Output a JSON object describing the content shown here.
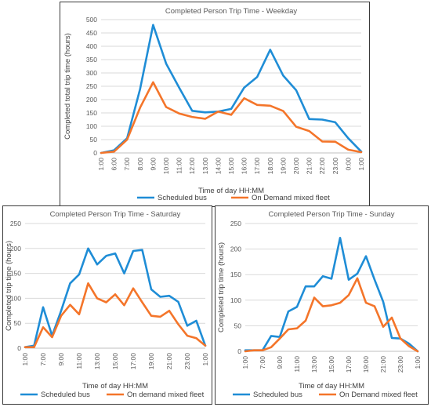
{
  "colors": {
    "scheduled": "#1f8dd6",
    "on_demand": "#f4752a"
  },
  "chart_data": [
    {
      "type": "line",
      "title": "Completed Person Trip Time - Weekday",
      "xlabel": "Time of day HH:MM",
      "ylabel": "Completed total trip time (hours)",
      "ylim": [
        0,
        500
      ],
      "yticks": [
        0,
        50,
        100,
        150,
        200,
        250,
        300,
        350,
        400,
        450,
        500
      ],
      "grid": true,
      "legend": "bottom",
      "categories": [
        "1:00",
        "6:00",
        "7:00",
        "8:00",
        "9:00",
        "10:00",
        "11:00",
        "12:00",
        "13:00",
        "14:00",
        "15:00",
        "16:00",
        "17:00",
        "18:00",
        "19:00",
        "20:00",
        "21:00",
        "22:00",
        "23:00",
        "0:00",
        "1:00"
      ],
      "series": [
        {
          "name": "Scheduled bus",
          "color": "#1f8dd6",
          "values": [
            0,
            10,
            55,
            240,
            480,
            335,
            245,
            158,
            152,
            155,
            165,
            245,
            285,
            387,
            290,
            235,
            127,
            125,
            115,
            55,
            5
          ]
        },
        {
          "name": "On Demand mixed fleet",
          "color": "#f4752a",
          "values": [
            0,
            5,
            50,
            170,
            265,
            172,
            148,
            135,
            128,
            155,
            143,
            205,
            180,
            177,
            157,
            98,
            82,
            43,
            42,
            12,
            3
          ]
        }
      ]
    },
    {
      "type": "line",
      "title": "Completed Person Trip Time - Saturday",
      "xlabel": "Time of day HH:MM",
      "ylabel": "Completed trip time (hours)",
      "ylim": [
        0,
        250
      ],
      "yticks": [
        0,
        50,
        100,
        150,
        200,
        250
      ],
      "grid": true,
      "legend": "bottom",
      "categories": [
        "1:00",
        "6:00",
        "7:00",
        "8:00",
        "9:00",
        "10:00",
        "11:00",
        "12:00",
        "13:00",
        "14:00",
        "15:00",
        "16:00",
        "17:00",
        "18:00",
        "19:00",
        "20:00",
        "21:00",
        "22:00",
        "23:00",
        "0:00",
        "1:00"
      ],
      "tick_labels": [
        "1:00",
        "",
        "7:00",
        "",
        "9:00",
        "",
        "11:00",
        "",
        "13:00",
        "",
        "15:00",
        "",
        "17:00",
        "",
        "19:00",
        "",
        "21:00",
        "",
        "23:00",
        "",
        "1:00"
      ],
      "series": [
        {
          "name": "Scheduled bus",
          "color": "#1f8dd6",
          "values": [
            2,
            5,
            82,
            25,
            75,
            130,
            148,
            200,
            168,
            185,
            190,
            150,
            195,
            197,
            118,
            103,
            105,
            93,
            45,
            55,
            5
          ]
        },
        {
          "name": "On demand mixed fleet",
          "color": "#f4752a",
          "values": [
            2,
            2,
            42,
            22,
            65,
            87,
            68,
            130,
            100,
            92,
            108,
            86,
            120,
            92,
            65,
            63,
            75,
            48,
            25,
            20,
            5
          ]
        }
      ]
    },
    {
      "type": "line",
      "title": "Completed Person Trip Time - Sunday",
      "xlabel": "Time of day HH:MM",
      "ylabel": "Completed trip time (hours)",
      "ylim": [
        0,
        250
      ],
      "yticks": [
        0,
        50,
        100,
        150,
        200,
        250
      ],
      "grid": true,
      "legend": "bottom",
      "categories": [
        "1:00",
        "6:00",
        "7:00",
        "8:00",
        "9:00",
        "10:00",
        "11:00",
        "12:00",
        "13:00",
        "14:00",
        "15:00",
        "16:00",
        "17:00",
        "18:00",
        "19:00",
        "20:00",
        "21:00",
        "22:00",
        "23:00",
        "0:00",
        "1:00"
      ],
      "tick_labels": [
        "1:00",
        "",
        "7:00",
        "",
        "9:00",
        "",
        "11:00",
        "",
        "13:00",
        "",
        "15:00",
        "",
        "17:00",
        "",
        "19:00",
        "",
        "21:00",
        "",
        "23:00",
        "",
        "1:00"
      ],
      "series": [
        {
          "name": "Scheduled bus",
          "color": "#1f8dd6",
          "values": [
            2,
            2,
            2,
            30,
            28,
            78,
            87,
            127,
            127,
            147,
            142,
            222,
            140,
            152,
            186,
            140,
            97,
            26,
            25,
            15,
            0
          ]
        },
        {
          "name": "On Demand mixed fleet",
          "color": "#f4752a",
          "values": [
            0,
            2,
            2,
            8,
            25,
            43,
            45,
            60,
            105,
            88,
            90,
            95,
            110,
            143,
            95,
            88,
            48,
            66,
            25,
            10,
            0
          ]
        }
      ]
    }
  ]
}
